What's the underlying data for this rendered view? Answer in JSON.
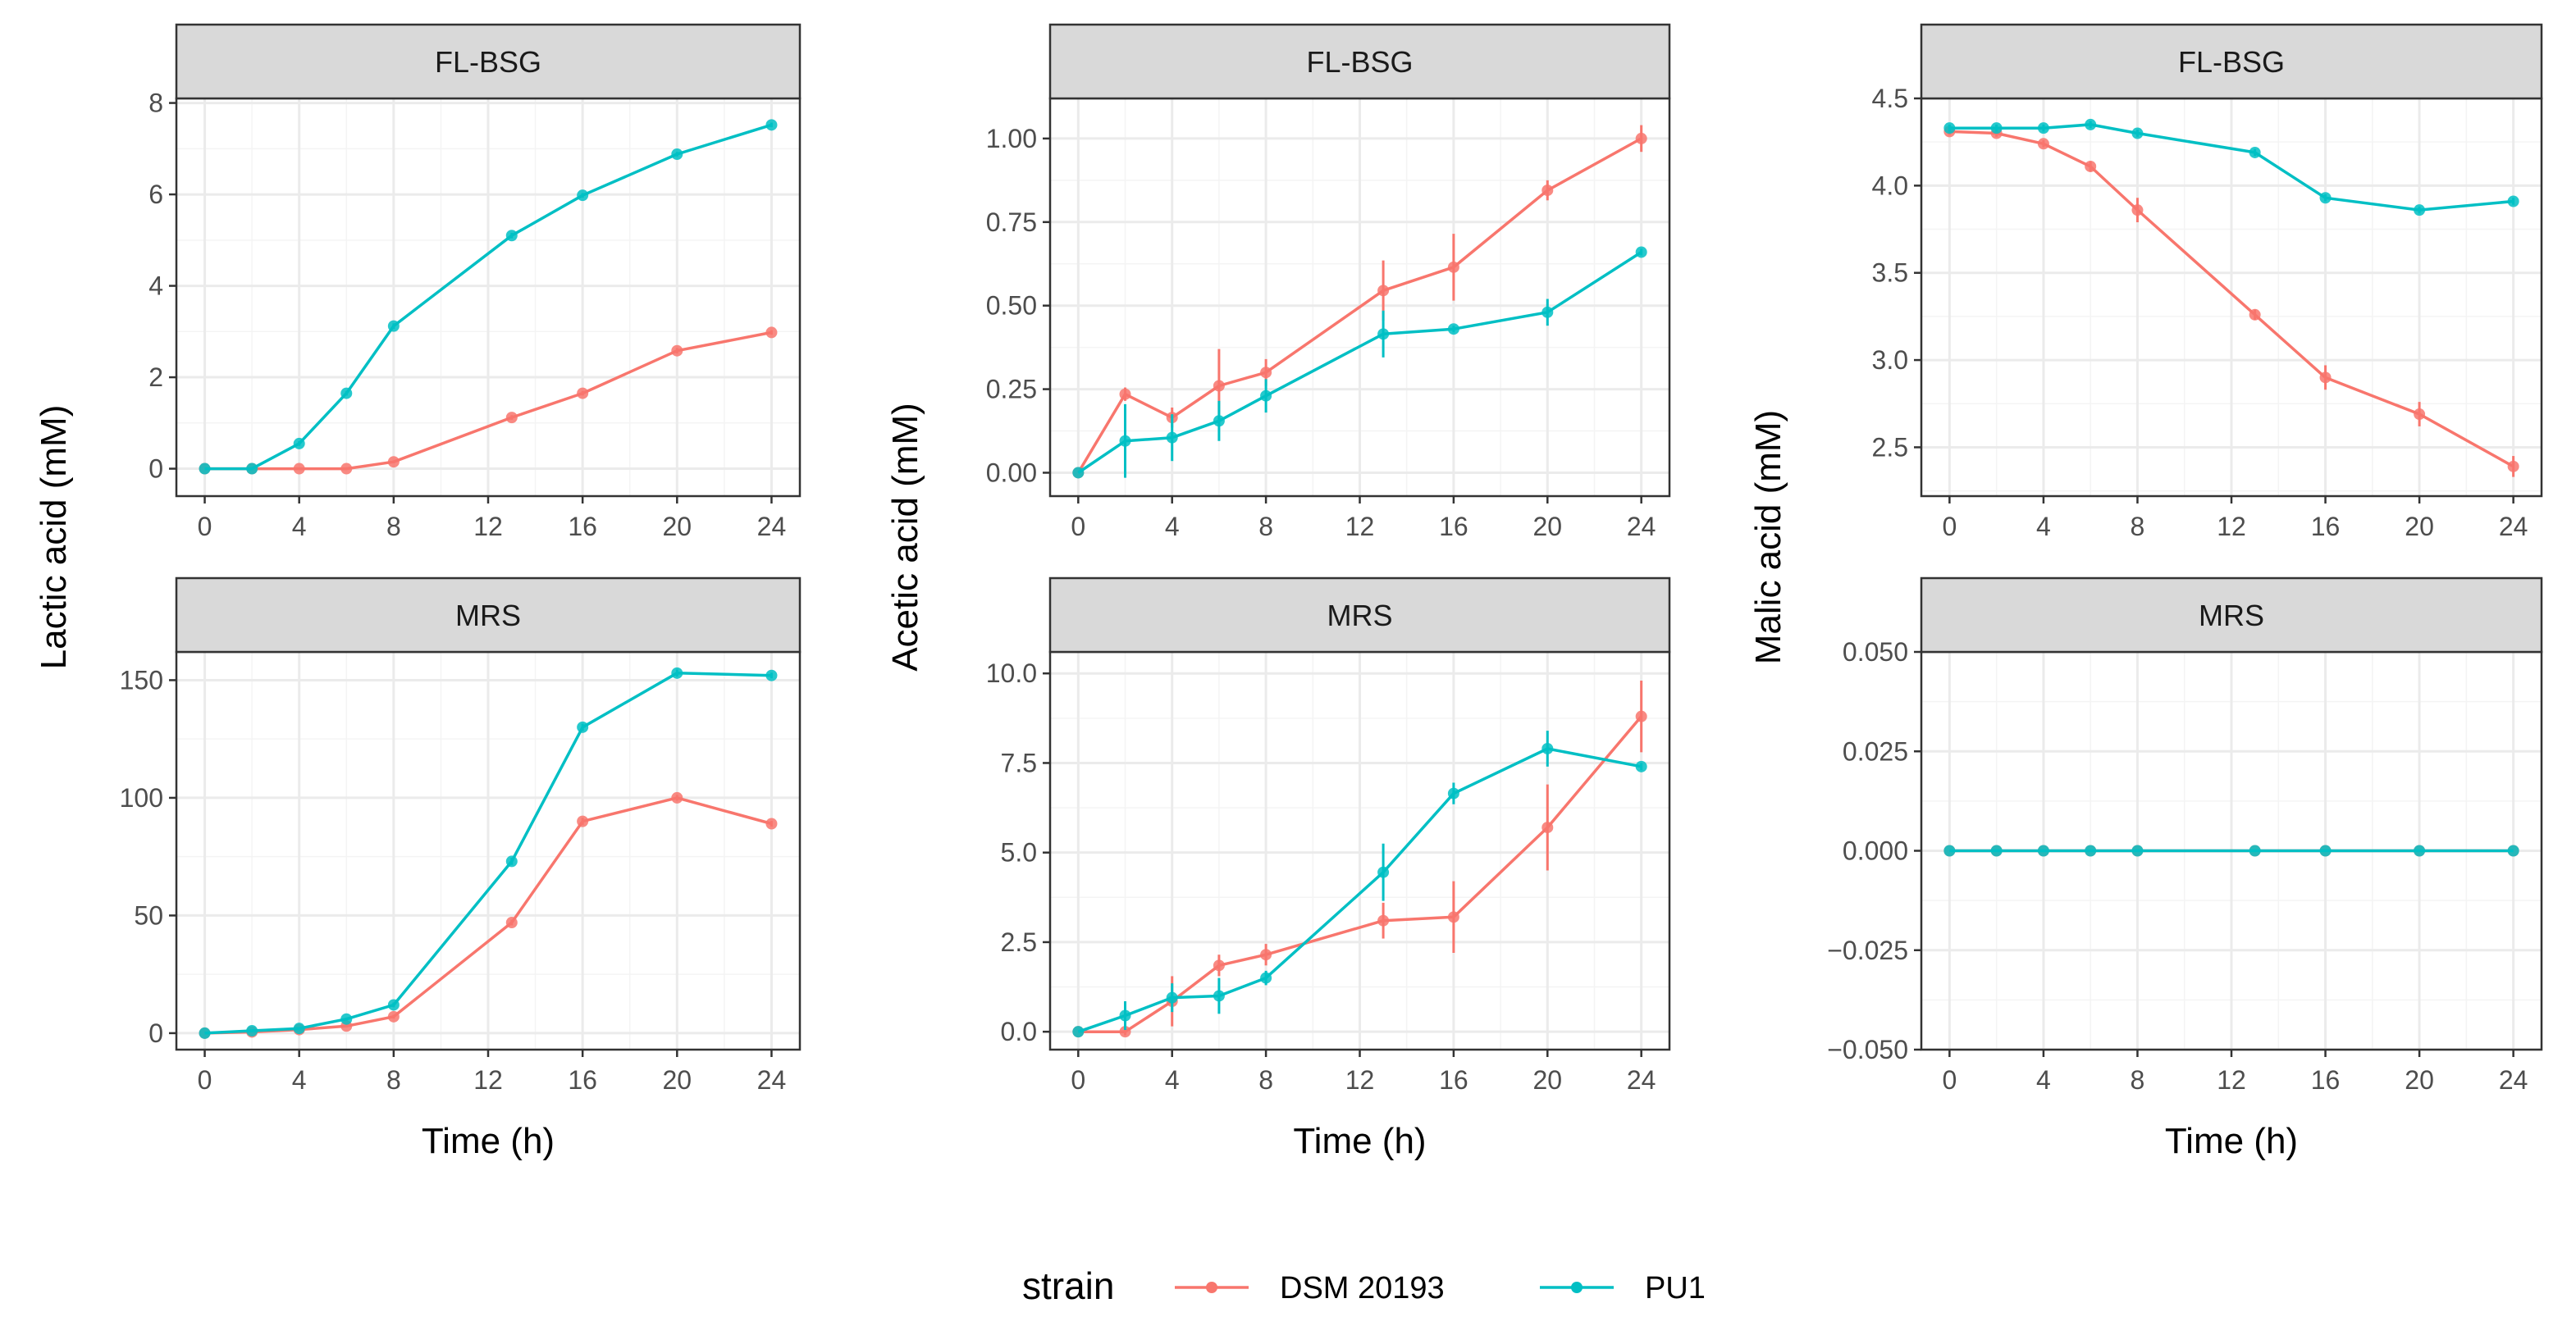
{
  "colors": {
    "DSM 20193": "#F8766D",
    "PU1": "#00BFC4",
    "strip_bg": "#D9D9D9",
    "grid_major": "#EBEBEB",
    "grid_minor": "#F4F4F4",
    "panel_border": "#333333"
  },
  "legend": {
    "title": "strain",
    "entries": [
      "DSM 20193",
      "PU1"
    ]
  },
  "x_axis": {
    "title": "Time (h)",
    "ticks": [
      "0",
      "4",
      "8",
      "12",
      "16",
      "20",
      "24"
    ]
  },
  "chart_data": [
    {
      "type": "line",
      "column": 0,
      "row": 0,
      "strip": "FL-BSG",
      "ylabel": "Lactic acid (mM)",
      "xlim": [
        -1.2,
        25.2
      ],
      "ylim": [
        -0.6,
        8.1
      ],
      "yticks": [
        0,
        2,
        4,
        6,
        8
      ],
      "ytick_labels": [
        "0",
        "2",
        "4",
        "6",
        "8"
      ],
      "x": [
        0,
        2,
        4,
        6,
        8,
        13,
        16,
        20,
        24
      ],
      "series": [
        {
          "name": "DSM 20193",
          "values": [
            0,
            0,
            0,
            0,
            0.15,
            1.12,
            1.65,
            2.58,
            2.98
          ],
          "err": [
            0,
            0,
            0,
            0,
            0.03,
            0.05,
            0.05,
            0.06,
            0.05
          ]
        },
        {
          "name": "PU1",
          "values": [
            0,
            0,
            0.55,
            1.65,
            3.12,
            5.1,
            5.98,
            6.88,
            7.52
          ],
          "err": [
            0,
            0,
            0.05,
            0.05,
            0.06,
            0.06,
            0.05,
            0.05,
            0.05
          ]
        }
      ]
    },
    {
      "type": "line",
      "column": 0,
      "row": 1,
      "strip": "MRS",
      "ylabel": "Lactic acid (mM)",
      "xlim": [
        -1.2,
        25.2
      ],
      "ylim": [
        -7,
        162
      ],
      "yticks": [
        0,
        50,
        100,
        150
      ],
      "ytick_labels": [
        "0",
        "50",
        "100",
        "150"
      ],
      "x": [
        0,
        2,
        4,
        6,
        8,
        13,
        16,
        20,
        24
      ],
      "series": [
        {
          "name": "DSM 20193",
          "values": [
            0,
            0.5,
            1.5,
            3,
            7,
            47,
            90,
            100,
            89
          ],
          "err": [
            0,
            0,
            0.5,
            0.6,
            0.8,
            1.2,
            1.5,
            1.2,
            1.2
          ]
        },
        {
          "name": "PU1",
          "values": [
            0,
            1,
            2,
            6,
            12,
            73,
            130,
            153,
            152
          ],
          "err": [
            0,
            0,
            0.5,
            0.6,
            1,
            1.5,
            1.5,
            1.5,
            1.2
          ]
        }
      ]
    },
    {
      "type": "line",
      "column": 1,
      "row": 0,
      "strip": "FL-BSG",
      "ylabel": "Acetic acid (mM)",
      "xlim": [
        -1.2,
        25.2
      ],
      "ylim": [
        -0.07,
        1.12
      ],
      "yticks": [
        0,
        0.25,
        0.5,
        0.75,
        1.0
      ],
      "ytick_labels": [
        "0.00",
        "0.25",
        "0.50",
        "0.75",
        "1.00"
      ],
      "x": [
        0,
        2,
        4,
        6,
        8,
        13,
        16,
        20,
        24
      ],
      "series": [
        {
          "name": "DSM 20193",
          "values": [
            0,
            0.235,
            0.165,
            0.26,
            0.3,
            0.545,
            0.615,
            0.845,
            1.0
          ],
          "err": [
            0,
            0.02,
            0.03,
            0.11,
            0.04,
            0.09,
            0.1,
            0.03,
            0.04
          ]
        },
        {
          "name": "PU1",
          "values": [
            0,
            0.095,
            0.105,
            0.155,
            0.23,
            0.415,
            0.43,
            0.48,
            0.66
          ],
          "err": [
            0,
            0.11,
            0.07,
            0.06,
            0.05,
            0.07,
            0.01,
            0.04,
            0.01
          ]
        }
      ]
    },
    {
      "type": "line",
      "column": 1,
      "row": 1,
      "strip": "MRS",
      "ylabel": "Acetic acid (mM)",
      "xlim": [
        -1.2,
        25.2
      ],
      "ylim": [
        -0.5,
        10.6
      ],
      "yticks": [
        0,
        2.5,
        5,
        7.5,
        10
      ],
      "ytick_labels": [
        "0.0",
        "2.5",
        "5.0",
        "7.5",
        "10.0"
      ],
      "x": [
        0,
        2,
        4,
        6,
        8,
        13,
        16,
        20,
        24
      ],
      "series": [
        {
          "name": "DSM 20193",
          "values": [
            0,
            0,
            0.85,
            1.85,
            2.15,
            3.1,
            3.2,
            5.7,
            8.8
          ],
          "err": [
            0,
            0.1,
            0.7,
            0.3,
            0.3,
            0.5,
            1.0,
            1.2,
            1.0
          ]
        },
        {
          "name": "PU1",
          "values": [
            0,
            0.45,
            0.95,
            1.0,
            1.5,
            4.45,
            6.65,
            7.9,
            7.4
          ],
          "err": [
            0,
            0.4,
            0.4,
            0.5,
            0.2,
            0.8,
            0.3,
            0.5,
            0.1
          ]
        }
      ]
    },
    {
      "type": "line",
      "column": 2,
      "row": 0,
      "strip": "FL-BSG",
      "ylabel": "Malic acid (mM)",
      "xlim": [
        -1.2,
        25.2
      ],
      "ylim": [
        2.22,
        4.5
      ],
      "yticks": [
        2.5,
        3.0,
        3.5,
        4.0,
        4.5
      ],
      "ytick_labels": [
        "2.5",
        "3.0",
        "3.5",
        "4.0",
        "4.5"
      ],
      "x": [
        0,
        2,
        4,
        6,
        8,
        13,
        16,
        20,
        24
      ],
      "series": [
        {
          "name": "DSM 20193",
          "values": [
            4.31,
            4.3,
            4.24,
            4.11,
            3.86,
            3.26,
            2.9,
            2.69,
            2.39
          ],
          "err": [
            0.02,
            0.02,
            0.02,
            0.03,
            0.07,
            0.03,
            0.07,
            0.07,
            0.06
          ]
        },
        {
          "name": "PU1",
          "values": [
            4.33,
            4.33,
            4.33,
            4.35,
            4.3,
            4.19,
            3.93,
            3.86,
            3.91
          ],
          "err": [
            0.02,
            0.02,
            0.02,
            0.02,
            0.02,
            0.02,
            0.02,
            0.02,
            0.02
          ]
        }
      ]
    },
    {
      "type": "line",
      "column": 2,
      "row": 1,
      "strip": "MRS",
      "ylabel": "Malic acid (mM)",
      "xlim": [
        -1.2,
        25.2
      ],
      "ylim": [
        -0.05,
        0.05
      ],
      "yticks": [
        -0.05,
        -0.025,
        0,
        0.025,
        0.05
      ],
      "ytick_labels": [
        "−0.050",
        "−0.025",
        "0.000",
        "0.025",
        "0.050"
      ],
      "x": [
        0,
        2,
        4,
        6,
        8,
        13,
        16,
        20,
        24
      ],
      "series": [
        {
          "name": "DSM 20193",
          "values": [
            0,
            0,
            0,
            0,
            0,
            0,
            0,
            0,
            0
          ],
          "err": [
            0,
            0,
            0,
            0,
            0,
            0,
            0,
            0,
            0
          ]
        },
        {
          "name": "PU1",
          "values": [
            0,
            0,
            0,
            0,
            0,
            0,
            0,
            0,
            0
          ],
          "err": [
            0,
            0,
            0,
            0,
            0,
            0,
            0,
            0,
            0
          ]
        }
      ]
    }
  ]
}
